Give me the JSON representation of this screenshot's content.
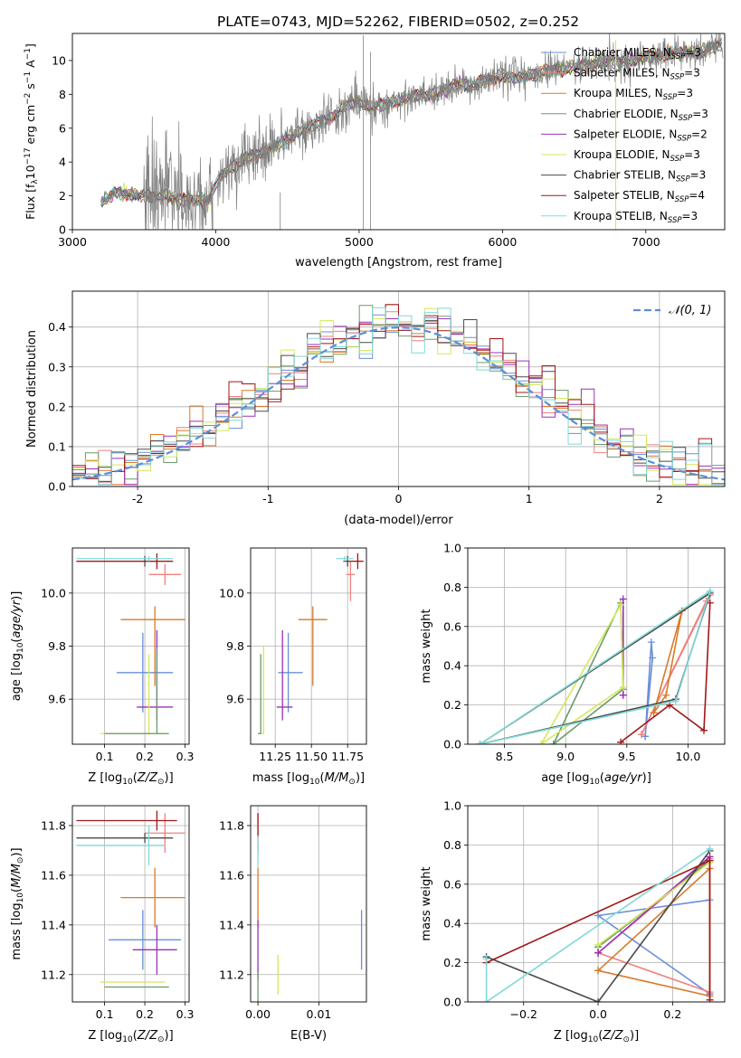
{
  "figure_title": "PLATE=0743, MJD=52262, FIBERID=0502, z=0.252",
  "colors": {
    "chabrier_miles": "#6a8fd8",
    "salpeter_miles": "#f08080",
    "kroupa_miles": "#d97a28",
    "chabrier_elodie": "#6a9a6a",
    "salpeter_elodie": "#9b30b8",
    "kroupa_elodie": "#d4e85a",
    "chabrier_stelib": "#4a4a4a",
    "salpeter_stelib": "#a01818",
    "kroupa_stelib": "#80d8d8",
    "data_spectrum": "#808080",
    "gaussian": "#5a8fd8"
  },
  "chart_data": [
    {
      "id": "spectrum",
      "type": "line",
      "title": "",
      "xlabel": "wavelength [Angstrom, rest frame]",
      "ylabel": "Flux [f_λ10^-17 erg cm^-2 s^-1 A^-1]",
      "xlim": [
        3000,
        7550
      ],
      "ylim": [
        0,
        11.6
      ],
      "xticks": [
        3000,
        4000,
        5000,
        6000,
        7000
      ],
      "yticks": [
        0,
        2,
        4,
        6,
        8,
        10
      ],
      "grid": false,
      "legend_position": "upper-right",
      "legend": [
        {
          "label": "Chabrier MILES, N_SSP=3",
          "color_key": "chabrier_miles"
        },
        {
          "label": "Salpeter MILES, N_SSP=3",
          "color_key": "salpeter_miles"
        },
        {
          "label": "Kroupa MILES, N_SSP=3",
          "color_key": "kroupa_miles"
        },
        {
          "label": "Chabrier ELODIE, N_SSP=3",
          "color_key": "chabrier_elodie"
        },
        {
          "label": "Salpeter ELODIE, N_SSP=2",
          "color_key": "salpeter_elodie"
        },
        {
          "label": "Kroupa ELODIE, N_SSP=3",
          "color_key": "kroupa_elodie"
        },
        {
          "label": "Chabrier STELIB, N_SSP=3",
          "color_key": "chabrier_stelib"
        },
        {
          "label": "Salpeter STELIB, N_SSP=4",
          "color_key": "salpeter_stelib"
        },
        {
          "label": "Kroupa STELIB, N_SSP=3",
          "color_key": "kroupa_stelib"
        }
      ],
      "continuum": {
        "x": [
          3200,
          3300,
          3400,
          3550,
          3650,
          3750,
          3850,
          3950,
          4000,
          4100,
          4200,
          4300,
          4400,
          4500,
          4600,
          4700,
          4800,
          4900,
          5000,
          5100,
          5200,
          5300,
          5400,
          5500,
          5600,
          5700,
          5800,
          5900,
          6000,
          6100,
          6200,
          6300,
          6400,
          6500,
          6600,
          6700,
          6800,
          6900,
          7000,
          7100,
          7200,
          7300,
          7400,
          7520
        ],
        "y": [
          1.6,
          2.2,
          2.1,
          1.9,
          2.1,
          1.7,
          1.8,
          1.7,
          2.8,
          3.6,
          4.2,
          4.5,
          4.9,
          5.3,
          5.9,
          6.2,
          6.6,
          7.3,
          7.6,
          7.2,
          7.5,
          7.7,
          7.9,
          8.0,
          8.3,
          8.6,
          8.5,
          8.9,
          9.1,
          8.9,
          9.2,
          9.3,
          9.5,
          9.6,
          9.8,
          10.0,
          9.9,
          10.0,
          10.2,
          10.3,
          10.4,
          10.5,
          10.6,
          10.9
        ]
      },
      "spikes": [
        {
          "x": 4450,
          "y": 2.2
        },
        {
          "x": 5030,
          "y": 11.5
        },
        {
          "x": 5080,
          "y": 10.5
        },
        {
          "x": 6790,
          "y": 11.2
        }
      ]
    },
    {
      "id": "residuals",
      "type": "histogram",
      "title": "",
      "xlabel": "(data-model)/error",
      "ylabel": "Normed distribution",
      "xlim": [
        -2.5,
        2.5
      ],
      "ylim": [
        0,
        0.49
      ],
      "xticks": [
        -2,
        -1,
        0,
        1,
        2
      ],
      "yticks": [
        0.0,
        0.1,
        0.2,
        0.3,
        0.4
      ],
      "grid": true,
      "legend_position": "upper-right",
      "legend": [
        {
          "label": "𝒩(0, 1)",
          "color_key": "gaussian"
        }
      ],
      "bin_width": 0.1,
      "bins_start": -2.5
    },
    {
      "id": "age_vs_z",
      "type": "errorbar",
      "title": "",
      "xlabel": "Z [log10(Z/Z⊙)]",
      "ylabel": "age  [log10(age/yr)]",
      "xlim": [
        0.02,
        0.31
      ],
      "ylim": [
        9.43,
        10.17
      ],
      "xticks": [
        0.1,
        0.2,
        0.3
      ],
      "yticks": [
        9.6,
        9.8,
        10.0
      ],
      "grid": true,
      "points": [
        {
          "color_key": "chabrier_miles",
          "x": 0.195,
          "xerr": [
            0.065,
            0.075
          ],
          "y": 9.7,
          "yerr": [
            0.15,
            0.15
          ]
        },
        {
          "color_key": "kroupa_miles",
          "x": 0.225,
          "xerr": [
            0.085,
            0.075
          ],
          "y": 9.9,
          "yerr": [
            0.25,
            0.05
          ]
        },
        {
          "color_key": "salpeter_miles",
          "x": 0.25,
          "xerr": [
            0.04,
            0.04
          ],
          "y": 10.07,
          "yerr": [
            0.04,
            0.04
          ]
        },
        {
          "color_key": "chabrier_stelib",
          "x": 0.2,
          "xerr": [
            0.17,
            0.07
          ],
          "y": 10.12,
          "yerr": [
            0.02,
            0.02
          ]
        },
        {
          "color_key": "salpeter_stelib",
          "x": 0.23,
          "xerr": [
            0.2,
            0.04
          ],
          "y": 10.12,
          "yerr": [
            0.03,
            0.03
          ]
        },
        {
          "color_key": "kroupa_stelib",
          "x": 0.21,
          "xerr": [
            0.18,
            0.06
          ],
          "y": 10.13,
          "yerr": [
            0.01,
            0.01
          ]
        },
        {
          "color_key": "salpeter_elodie",
          "x": 0.23,
          "xerr": [
            0.05,
            0.04
          ],
          "y": 9.57,
          "yerr": [
            0.05,
            0.29
          ]
        },
        {
          "color_key": "kroupa_elodie",
          "x": 0.21,
          "xerr": [
            0.12,
            0.04
          ],
          "y": 9.47,
          "yerr": [
            0.0,
            0.3
          ]
        },
        {
          "color_key": "chabrier_elodie",
          "x": 0.23,
          "xerr": [
            0.13,
            0.03
          ],
          "y": 9.47,
          "yerr": [
            0.0,
            0.32
          ]
        }
      ]
    },
    {
      "id": "age_vs_mass",
      "type": "errorbar",
      "title": "",
      "xlabel": "mass [log10(M/M⊙)]",
      "ylabel": "",
      "xlim": [
        11.08,
        11.88
      ],
      "ylim": [
        9.43,
        10.17
      ],
      "xticks": [
        11.25,
        11.5,
        11.75
      ],
      "yticks": [
        9.6,
        9.8,
        10.0
      ],
      "grid": true,
      "points": [
        {
          "color_key": "chabrier_miles",
          "x": 11.34,
          "xerr": [
            0.07,
            0.1
          ],
          "y": 9.7,
          "yerr": [
            0.15,
            0.15
          ]
        },
        {
          "color_key": "kroupa_miles",
          "x": 11.51,
          "xerr": [
            0.1,
            0.1
          ],
          "y": 9.9,
          "yerr": [
            0.25,
            0.05
          ]
        },
        {
          "color_key": "salpeter_miles",
          "x": 11.77,
          "xerr": [
            0.03,
            0.03
          ],
          "y": 10.07,
          "yerr": [
            0.1,
            0.05
          ]
        },
        {
          "color_key": "chabrier_stelib",
          "x": 11.75,
          "xerr": [
            0.03,
            0.03
          ],
          "y": 10.12,
          "yerr": [
            0.02,
            0.02
          ]
        },
        {
          "color_key": "salpeter_stelib",
          "x": 11.82,
          "xerr": [
            0.04,
            0.04
          ],
          "y": 10.12,
          "yerr": [
            0.03,
            0.03
          ]
        },
        {
          "color_key": "kroupa_stelib",
          "x": 11.73,
          "xerr": [
            0.06,
            0.06
          ],
          "y": 10.13,
          "yerr": [
            0.01,
            0.01
          ]
        },
        {
          "color_key": "salpeter_elodie",
          "x": 11.3,
          "xerr": [
            0.04,
            0.07
          ],
          "y": 9.57,
          "yerr": [
            0.05,
            0.29
          ]
        },
        {
          "color_key": "kroupa_elodie",
          "x": 11.17,
          "xerr": [
            0.03,
            0.0
          ],
          "y": 9.47,
          "yerr": [
            0.0,
            0.33
          ]
        },
        {
          "color_key": "chabrier_elodie",
          "x": 11.15,
          "xerr": [
            0.02,
            0.0
          ],
          "y": 9.47,
          "yerr": [
            0.0,
            0.3
          ]
        }
      ]
    },
    {
      "id": "weight_vs_age",
      "type": "line",
      "title": "",
      "xlabel": "age  [log10(age/yr)]",
      "ylabel": "mass weight",
      "xlim": [
        8.2,
        10.3
      ],
      "ylim": [
        0,
        1
      ],
      "xticks": [
        8.5,
        9.0,
        9.5,
        10.0
      ],
      "yticks": [
        0.0,
        0.2,
        0.4,
        0.6,
        0.8,
        1.0
      ],
      "grid": true,
      "series": [
        {
          "color_key": "chabrier_miles",
          "x": [
            9.65,
            9.71,
            9.7,
            9.65
          ],
          "y": [
            0.04,
            0.44,
            0.52,
            0.04
          ]
        },
        {
          "color_key": "salpeter_miles",
          "x": [
            9.62,
            10.15,
            10.18,
            9.62
          ],
          "y": [
            0.05,
            0.73,
            0.76,
            0.05
          ]
        },
        {
          "color_key": "kroupa_miles",
          "x": [
            9.72,
            9.82,
            9.95,
            9.72
          ],
          "y": [
            0.16,
            0.25,
            0.68,
            0.16
          ]
        },
        {
          "color_key": "chabrier_elodie",
          "x": [
            8.9,
            9.45,
            9.47,
            8.9
          ],
          "y": [
            0.0,
            0.72,
            0.28,
            0.0
          ]
        },
        {
          "color_key": "salpeter_elodie",
          "x": [
            9.47,
            9.47,
            9.47
          ],
          "y": [
            0.25,
            0.74,
            0.25
          ]
        },
        {
          "color_key": "kroupa_elodie",
          "x": [
            8.8,
            9.45,
            9.47,
            8.8
          ],
          "y": [
            0.0,
            0.71,
            0.29,
            0.0
          ]
        },
        {
          "color_key": "chabrier_stelib",
          "x": [
            8.3,
            9.9,
            10.18,
            8.3
          ],
          "y": [
            0.0,
            0.23,
            0.77,
            0.0
          ]
        },
        {
          "color_key": "salpeter_stelib",
          "x": [
            9.45,
            9.85,
            10.13,
            10.18
          ],
          "y": [
            0.01,
            0.2,
            0.07,
            0.72
          ]
        },
        {
          "color_key": "kroupa_stelib",
          "x": [
            8.3,
            9.9,
            10.18,
            8.3
          ],
          "y": [
            0.0,
            0.22,
            0.78,
            0.0
          ]
        }
      ]
    },
    {
      "id": "mass_vs_z",
      "type": "errorbar",
      "title": "",
      "xlabel": "Z [log10(Z/Z⊙)]",
      "ylabel": "mass [log10(M/M⊙)]",
      "xlim": [
        0.02,
        0.31
      ],
      "ylim": [
        11.09,
        11.88
      ],
      "xticks": [
        0.1,
        0.2,
        0.3
      ],
      "yticks": [
        11.2,
        11.4,
        11.6,
        11.8
      ],
      "grid": true,
      "points": [
        {
          "color_key": "chabrier_miles",
          "x": 0.195,
          "xerr": [
            0.085,
            0.095
          ],
          "y": 11.34,
          "yerr": [
            0.12,
            0.12
          ]
        },
        {
          "color_key": "kroupa_miles",
          "x": 0.225,
          "xerr": [
            0.085,
            0.075
          ],
          "y": 11.51,
          "yerr": [
            0.12,
            0.12
          ]
        },
        {
          "color_key": "salpeter_miles",
          "x": 0.25,
          "xerr": [
            0.05,
            0.05
          ],
          "y": 11.77,
          "yerr": [
            0.08,
            0.08
          ]
        },
        {
          "color_key": "chabrier_stelib",
          "x": 0.2,
          "xerr": [
            0.17,
            0.07
          ],
          "y": 11.75,
          "yerr": [
            0.02,
            0.02
          ]
        },
        {
          "color_key": "salpeter_stelib",
          "x": 0.23,
          "xerr": [
            0.2,
            0.05
          ],
          "y": 11.82,
          "yerr": [
            0.04,
            0.04
          ]
        },
        {
          "color_key": "kroupa_stelib",
          "x": 0.21,
          "xerr": [
            0.18,
            0.04
          ],
          "y": 11.72,
          "yerr": [
            0.08,
            0.08
          ]
        },
        {
          "color_key": "salpeter_elodie",
          "x": 0.23,
          "xerr": [
            0.06,
            0.05
          ],
          "y": 11.3,
          "yerr": [
            0.1,
            0.1
          ]
        },
        {
          "color_key": "kroupa_elodie",
          "x": 0.21,
          "xerr": [
            0.12,
            0.04
          ],
          "y": 11.17,
          "yerr": [
            0.0,
            0.0
          ]
        },
        {
          "color_key": "chabrier_elodie",
          "x": 0.23,
          "xerr": [
            0.13,
            0.03
          ],
          "y": 11.15,
          "yerr": [
            0.0,
            0.0
          ]
        }
      ]
    },
    {
      "id": "mass_vs_ebv",
      "type": "errorbar",
      "title": "",
      "xlabel": "E(B-V)",
      "ylabel": "",
      "xlim": [
        -0.0012,
        0.0178
      ],
      "ylim": [
        11.09,
        11.88
      ],
      "xticks": [
        0.0,
        0.01
      ],
      "yticks": [
        11.2,
        11.4,
        11.6,
        11.8
      ],
      "grid": true,
      "points": [
        {
          "color_key": "chabrier_miles",
          "x": 0.017,
          "xerr": [
            0,
            0
          ],
          "y": 11.34,
          "yerr": [
            0.12,
            0.12
          ]
        },
        {
          "color_key": "kroupa_miles",
          "x": 0.0,
          "xerr": [
            0,
            0
          ],
          "y": 11.51,
          "yerr": [
            0.12,
            0.12
          ]
        },
        {
          "color_key": "salpeter_miles",
          "x": 0.0,
          "xerr": [
            0,
            0
          ],
          "y": 11.77,
          "yerr": [
            0.08,
            0.08
          ]
        },
        {
          "color_key": "salpeter_stelib",
          "x": 0.0,
          "xerr": [
            0,
            0
          ],
          "y": 11.8,
          "yerr": [
            0.05,
            0.05
          ]
        },
        {
          "color_key": "kroupa_stelib",
          "x": 0.0,
          "xerr": [
            0,
            0
          ],
          "y": 11.7,
          "yerr": [
            0.06,
            0.06
          ]
        },
        {
          "color_key": "salpeter_elodie",
          "x": 0.0,
          "xerr": [
            0,
            0
          ],
          "y": 11.3,
          "yerr": [
            0.12,
            0.12
          ]
        },
        {
          "color_key": "kroupa_elodie",
          "x": 0.0033,
          "xerr": [
            0,
            0
          ],
          "y": 11.2,
          "yerr": [
            0.08,
            0.08
          ]
        },
        {
          "color_key": "chabrier_elodie",
          "x": 0.0,
          "xerr": [
            0,
            0
          ],
          "y": 11.15,
          "yerr": [
            0.06,
            0.06
          ]
        }
      ]
    },
    {
      "id": "weight_vs_z",
      "type": "line",
      "title": "",
      "xlabel": "Z [log10(Z/Z⊙)]",
      "ylabel": "mass weight",
      "xlim": [
        -0.35,
        0.34
      ],
      "ylim": [
        0,
        1
      ],
      "xticks": [
        -0.2,
        0.0,
        0.2
      ],
      "yticks": [
        0.0,
        0.2,
        0.4,
        0.6,
        0.8,
        1.0
      ],
      "grid": true,
      "series": [
        {
          "color_key": "chabrier_miles",
          "x": [
            0.0,
            0.3,
            0.3,
            0.0
          ],
          "y": [
            0.44,
            0.52,
            0.04,
            0.44
          ]
        },
        {
          "color_key": "salpeter_miles",
          "x": [
            0.0,
            0.3,
            0.3,
            0.0
          ],
          "y": [
            0.25,
            0.73,
            0.05,
            0.25
          ]
        },
        {
          "color_key": "kroupa_miles",
          "x": [
            0.0,
            0.3,
            0.3,
            0.0
          ],
          "y": [
            0.16,
            0.68,
            0.03,
            0.16
          ]
        },
        {
          "color_key": "chabrier_elodie",
          "x": [
            0.0,
            0.3,
            0.0
          ],
          "y": [
            0.28,
            0.72,
            0.28
          ]
        },
        {
          "color_key": "salpeter_elodie",
          "x": [
            0.0,
            0.3,
            0.0
          ],
          "y": [
            0.25,
            0.74,
            0.25
          ]
        },
        {
          "color_key": "kroupa_elodie",
          "x": [
            0.0,
            0.3,
            0.0
          ],
          "y": [
            0.29,
            0.71,
            0.29
          ]
        },
        {
          "color_key": "chabrier_stelib",
          "x": [
            -0.3,
            0.0,
            0.3
          ],
          "y": [
            0.23,
            0.0,
            0.77
          ]
        },
        {
          "color_key": "salpeter_stelib",
          "x": [
            -0.3,
            0.3,
            0.3
          ],
          "y": [
            0.2,
            0.72,
            0.01
          ]
        },
        {
          "color_key": "kroupa_stelib",
          "x": [
            -0.3,
            -0.3,
            0.3
          ],
          "y": [
            0.22,
            0.0,
            0.78
          ]
        }
      ]
    }
  ]
}
